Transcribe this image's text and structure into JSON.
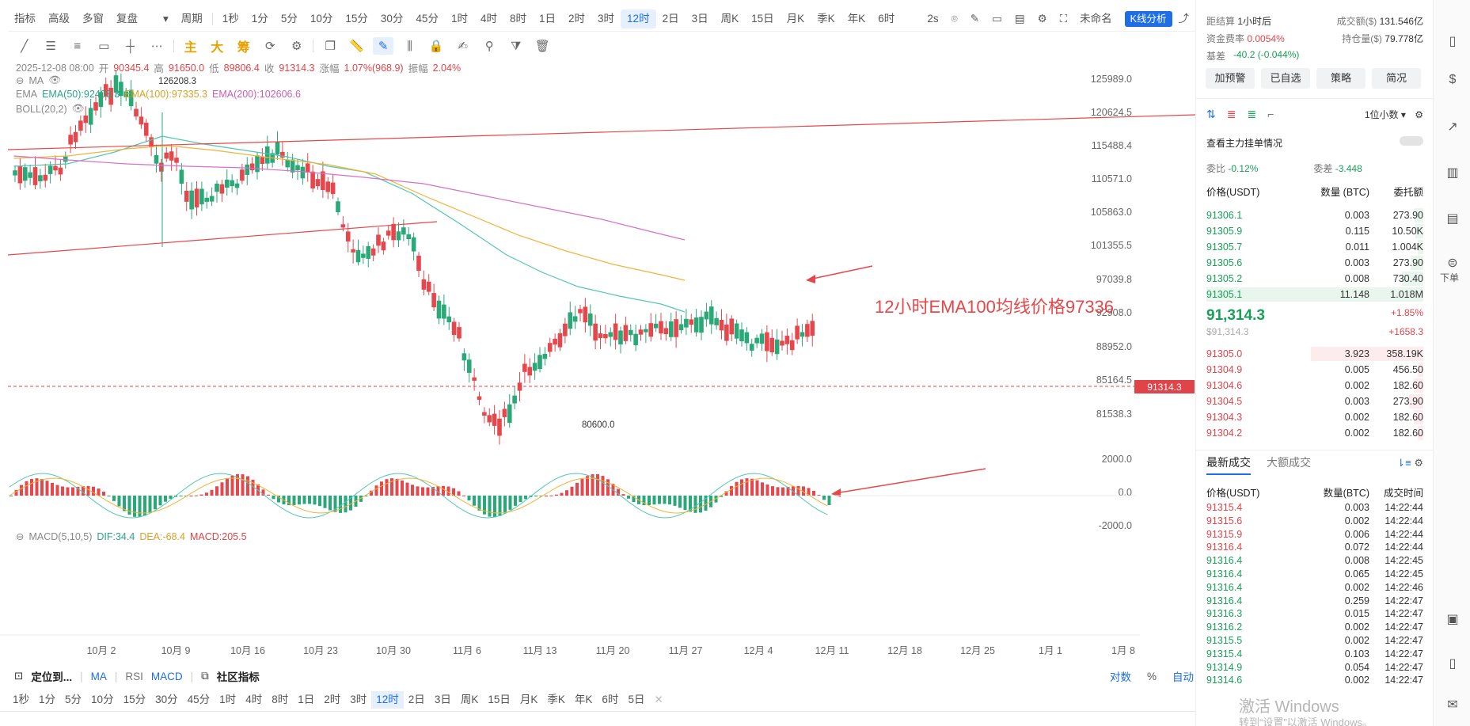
{
  "top_toolbar": {
    "items": [
      "指标",
      "高级",
      "多窗",
      "复盘",
      "",
      "周期",
      "1秒",
      "1分",
      "5分",
      "10分",
      "15分",
      "30分",
      "45分",
      "1时",
      "4时",
      "8时",
      "1日",
      "2时",
      "3时",
      "12时",
      "2日",
      "3日",
      "周K",
      "15日",
      "月K",
      "季K",
      "年K",
      "6时"
    ],
    "active": "12时",
    "right": {
      "refresh": "2s",
      "layout": "未命名",
      "kline_btn": "K线分析"
    }
  },
  "draw_tools": {
    "labels": [
      "主",
      "大",
      "筹"
    ]
  },
  "ohlc": {
    "date": "2025-12-08 08:00",
    "open_label": "开",
    "open": "90345.4",
    "high_label": "高",
    "high": "91650.0",
    "low_label": "低",
    "low": "89806.4",
    "close_label": "收",
    "close": "91314.3",
    "change_label": "涨幅",
    "change": "1.07%(968.9)",
    "amp_label": "振幅",
    "amp": "2.04%"
  },
  "indicators": {
    "ma": "MA",
    "ema": "EMA",
    "ema50": "EMA(50):92403.3",
    "ema100": "EMA(100):97335.3",
    "ema200": "EMA(200):102606.6",
    "boll": "BOLL(20,2)",
    "macd": "MACD(5,10,5)",
    "dif": "DIF:34.4",
    "dea": "DEA:-68.4",
    "macd_val": "MACD:205.5"
  },
  "price_axis": [
    "125989.0",
    "120624.5",
    "115488.4",
    "110571.0",
    "105863.0",
    "101355.5",
    "97039.8",
    "92908.0",
    "88952.0",
    "85164.5",
    "81538.3"
  ],
  "macd_axis": [
    "2000.0",
    "0.0",
    "-2000.0"
  ],
  "current_price": "91314.3",
  "high_marker": "126208.3",
  "low_marker": "80600.0",
  "date_axis": [
    "10月 2",
    "10月 9",
    "10月 16",
    "10月 23",
    "10月 30",
    "11月 6",
    "11月 13",
    "11月 20",
    "11月 27",
    "12月 4",
    "12月 11",
    "12月 18",
    "12月 25",
    "1月 1",
    "1月 8"
  ],
  "annotation": "12小时EMA100均线价格97336",
  "bottom_bar": {
    "locate": "定位到...",
    "ma": "MA",
    "rsi": "RSI",
    "macd": "MACD",
    "community": "社区指标",
    "right": [
      "对数",
      "%",
      "自动"
    ]
  },
  "bottom_periods": [
    "1秒",
    "1分",
    "5分",
    "10分",
    "15分",
    "30分",
    "45分",
    "1时",
    "4时",
    "8时",
    "1日",
    "2时",
    "3时",
    "12时",
    "2日",
    "3日",
    "周K",
    "15日",
    "月K",
    "季K",
    "年K",
    "6时",
    "5日"
  ],
  "bottom_active": "12时",
  "right_panel": {
    "funding_countdown_label": "距结算",
    "funding_countdown": "1小时后",
    "volume_label": "成交额($)",
    "volume": "131.546亿",
    "funding_rate_label": "资金费率",
    "funding_rate": "0.0054%",
    "oi_label": "持仓量($)",
    "oi": "79.778亿",
    "basis_label": "基差",
    "basis": "-40.2 (-0.044%)",
    "buttons": [
      "加预警",
      "已自选",
      "策略",
      "简况"
    ],
    "precision": "1位小数",
    "main_orders": "查看主力挂单情况",
    "ratio_label": "委比",
    "ratio": "-0.12%",
    "diff_label": "委差",
    "diff": "-3.448",
    "ob_headers": [
      "价格(USDT)",
      "数量 (BTC)",
      "委托额"
    ],
    "asks": [
      [
        "91306.1",
        "0.003",
        "273.90"
      ],
      [
        "91305.9",
        "0.115",
        "10.50K"
      ],
      [
        "91305.7",
        "0.011",
        "1.004K"
      ],
      [
        "91305.6",
        "0.003",
        "273.90"
      ],
      [
        "91305.2",
        "0.008",
        "730.40"
      ],
      [
        "91305.1",
        "11.148",
        "1.018M"
      ]
    ],
    "last_price": "91,314.3",
    "last_price_usd": "$91,314.3",
    "last_change": "+1.85%",
    "last_change_abs": "+1658.3",
    "bids": [
      [
        "91305.0",
        "3.923",
        "358.19K"
      ],
      [
        "91304.9",
        "0.005",
        "456.50"
      ],
      [
        "91304.6",
        "0.002",
        "182.60"
      ],
      [
        "91304.5",
        "0.003",
        "273.90"
      ],
      [
        "91304.3",
        "0.002",
        "182.60"
      ],
      [
        "91304.2",
        "0.002",
        "182.60"
      ]
    ],
    "tabs": [
      "最新成交",
      "大额成交"
    ],
    "trade_headers": [
      "价格(USDT)",
      "数量(BTC)",
      "成交时间"
    ],
    "trades": [
      [
        "91315.4",
        "0.003",
        "14:22:44",
        "r"
      ],
      [
        "91315.6",
        "0.002",
        "14:22:44",
        "r"
      ],
      [
        "91315.9",
        "0.006",
        "14:22:44",
        "r"
      ],
      [
        "91316.4",
        "0.072",
        "14:22:44",
        "r"
      ],
      [
        "91316.4",
        "0.008",
        "14:22:45",
        "g"
      ],
      [
        "91316.4",
        "0.065",
        "14:22:45",
        "g"
      ],
      [
        "91316.4",
        "0.002",
        "14:22:46",
        "g"
      ],
      [
        "91316.4",
        "0.259",
        "14:22:47",
        "g"
      ],
      [
        "91316.3",
        "0.015",
        "14:22:47",
        "g"
      ],
      [
        "91316.2",
        "0.002",
        "14:22:47",
        "g"
      ],
      [
        "91315.5",
        "0.002",
        "14:22:47",
        "g"
      ],
      [
        "91315.4",
        "0.103",
        "14:22:47",
        "g"
      ],
      [
        "91314.9",
        "0.054",
        "14:22:47",
        "g"
      ],
      [
        "91314.6",
        "0.002",
        "14:22:47",
        "g"
      ]
    ],
    "sidebar_label": "下单"
  },
  "watermark": {
    "line1": "激活 Windows",
    "line2": "转到“设置”以激活 Windows。"
  },
  "colors": {
    "up": "#18a058",
    "down": "#e04448",
    "ema50": "#52c7b0",
    "ema100": "#f0b43a",
    "ema200": "#d870c8",
    "accent": "#1e6ee8"
  }
}
